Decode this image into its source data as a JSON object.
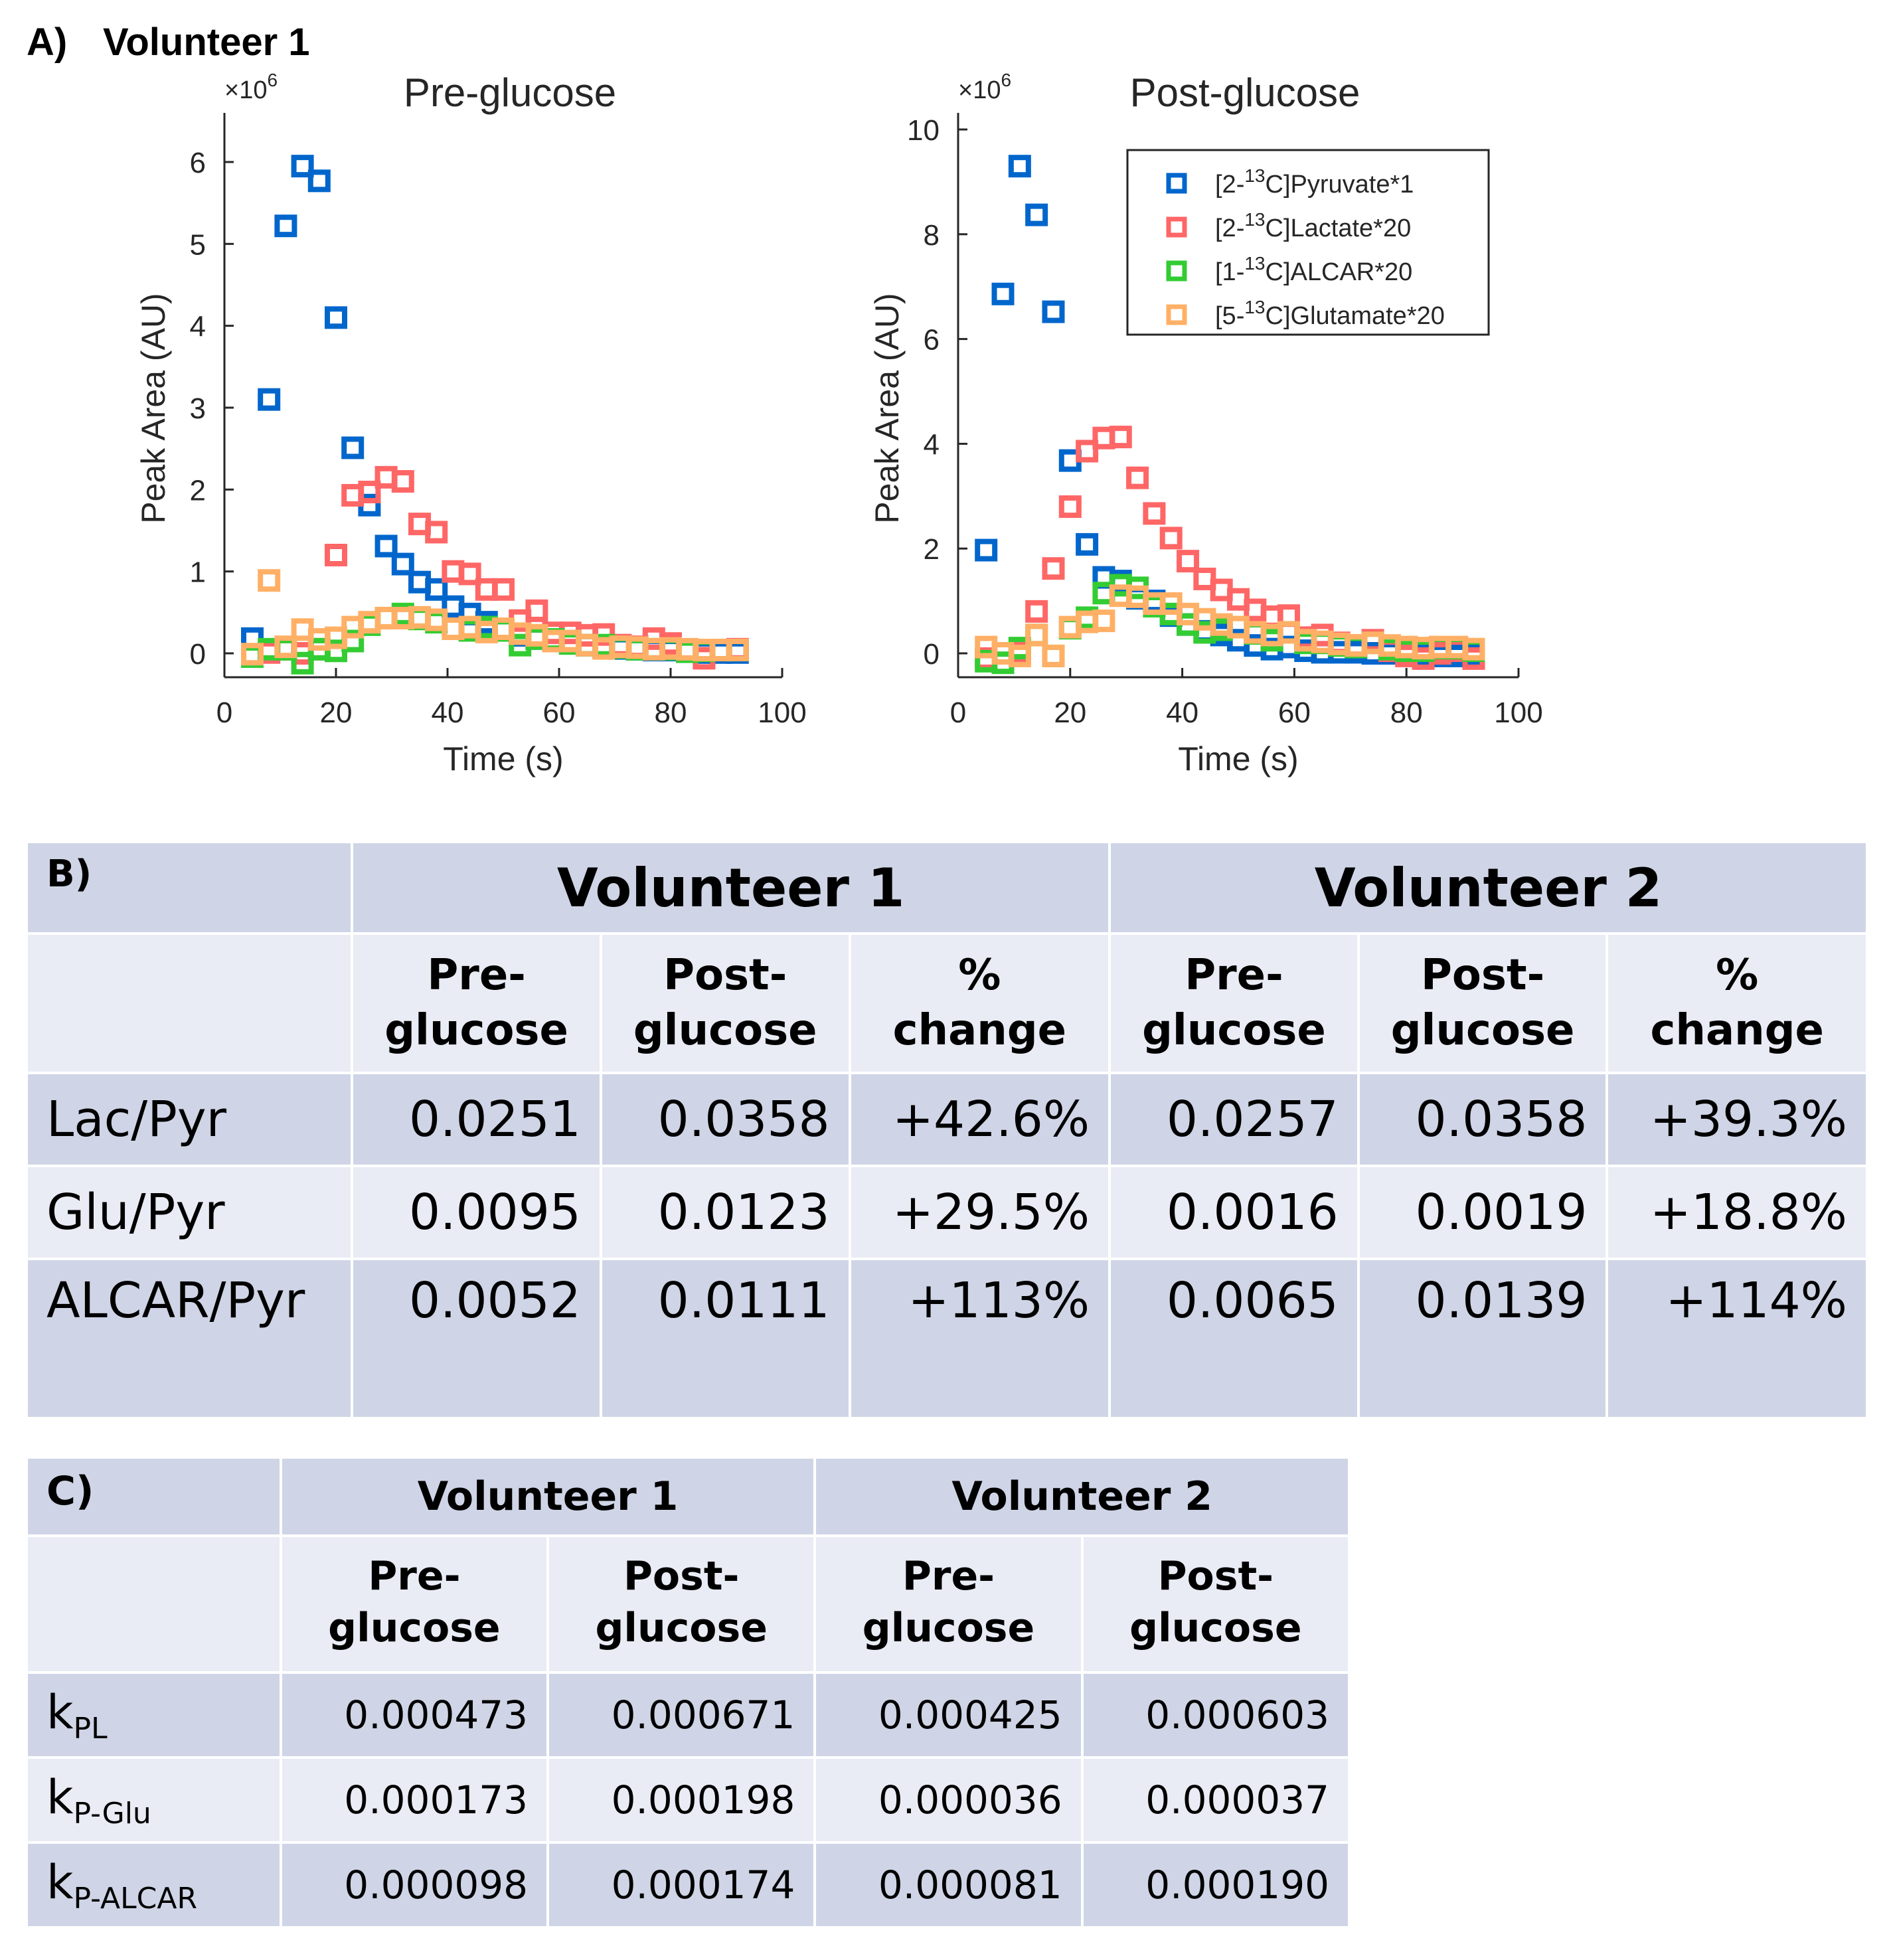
{
  "figure": {
    "panel_a": {
      "label": "A)",
      "title": "Volunteer 1"
    },
    "panel_b": {
      "label": "B)"
    },
    "panel_c": {
      "label": "C)"
    }
  },
  "colors": {
    "pyruvate": "#0066cc",
    "lactate": "#ff6666",
    "alcar": "#33cc33",
    "glutamate": "#ffb066",
    "axis": "#262626",
    "table_dark": "#cfd5e6",
    "table_light": "#e9ecf4"
  },
  "chart_data": [
    {
      "type": "scatter",
      "title": "Pre-glucose",
      "xlabel": "Time (s)",
      "ylabel": "Peak Area (AU)",
      "y_multiplier": "×10^6",
      "y_multiplier_base": "×10",
      "y_multiplier_exp": "6",
      "xlim": [
        0,
        100
      ],
      "ylim": [
        -0.3,
        6.5
      ],
      "xticks": [
        0,
        20,
        40,
        60,
        80,
        100
      ],
      "yticks": [
        0,
        1,
        2,
        3,
        4,
        5,
        6
      ],
      "grid": false,
      "legend": "none",
      "x": [
        5,
        8,
        11,
        14,
        17,
        20,
        23,
        26,
        29,
        32,
        35,
        38,
        41,
        44,
        47,
        50,
        53,
        56,
        59,
        62,
        65,
        68,
        71,
        74,
        77,
        80,
        83,
        86,
        89,
        92
      ],
      "series": [
        {
          "name": "[2-13C]Pyruvate*1",
          "color_key": "pyruvate",
          "values": [
            0.18,
            3.1,
            5.22,
            5.95,
            5.77,
            4.1,
            2.51,
            1.81,
            1.31,
            1.09,
            0.87,
            0.78,
            0.57,
            0.48,
            0.38,
            0.28,
            0.22,
            0.18,
            0.15,
            0.13,
            0.1,
            0.08,
            0.06,
            0.05,
            0.04,
            0.04,
            0.02,
            0.01,
            0.01,
            0.01
          ]
        },
        {
          "name": "[2-13C]Lactate*20",
          "color_key": "lactate",
          "values": [
            -0.02,
            0.01,
            0.05,
            0.0,
            0.05,
            1.2,
            1.93,
            1.97,
            2.15,
            2.1,
            1.58,
            1.48,
            1.0,
            0.97,
            0.78,
            0.78,
            0.4,
            0.52,
            0.25,
            0.25,
            0.22,
            0.23,
            0.1,
            0.08,
            0.18,
            0.12,
            0.03,
            -0.06,
            0.04,
            0.05
          ]
        },
        {
          "name": "[1-13C]ALCAR*20",
          "color_key": "alcar",
          "values": [
            -0.04,
            0.05,
            0.05,
            -0.12,
            0.05,
            0.03,
            0.15,
            0.35,
            0.43,
            0.48,
            0.42,
            0.38,
            0.3,
            0.28,
            0.32,
            0.28,
            0.1,
            0.18,
            0.17,
            0.12,
            0.1,
            0.1,
            0.07,
            0.05,
            0.05,
            0.05,
            0.02,
            0.03,
            0.04,
            0.04
          ]
        },
        {
          "name": "[5-13C]Glutamate*20",
          "color_key": "glutamate",
          "values": [
            -0.01,
            0.89,
            0.08,
            0.29,
            0.17,
            0.19,
            0.32,
            0.38,
            0.43,
            0.43,
            0.44,
            0.41,
            0.3,
            0.32,
            0.26,
            0.3,
            0.24,
            0.22,
            0.15,
            0.15,
            0.1,
            0.06,
            0.08,
            0.07,
            0.05,
            0.06,
            0.05,
            0.04,
            0.04,
            0.04
          ]
        }
      ]
    },
    {
      "type": "scatter",
      "title": "Post-glucose",
      "xlabel": "Time (s)",
      "ylabel": "Peak Area (AU)",
      "y_multiplier": "×10^6",
      "y_multiplier_base": "×10",
      "y_multiplier_exp": "6",
      "xlim": [
        0,
        100
      ],
      "ylim": [
        -0.45,
        10.2
      ],
      "xticks": [
        0,
        20,
        40,
        60,
        80,
        100
      ],
      "yticks": [
        0,
        2,
        4,
        6,
        8,
        10
      ],
      "grid": false,
      "legend": "top-right",
      "x": [
        5,
        8,
        11,
        14,
        17,
        20,
        23,
        26,
        29,
        32,
        35,
        38,
        41,
        44,
        47,
        50,
        53,
        56,
        59,
        62,
        65,
        68,
        71,
        74,
        77,
        80,
        83,
        86,
        89,
        92
      ],
      "series": [
        {
          "name": "[2-13C]Pyruvate*1",
          "color_key": "pyruvate",
          "values": [
            1.97,
            6.86,
            9.3,
            8.37,
            6.52,
            3.68,
            2.08,
            1.45,
            1.38,
            1.05,
            1.0,
            0.72,
            0.55,
            0.42,
            0.35,
            0.25,
            0.15,
            0.08,
            0.12,
            0.05,
            0.02,
            0.02,
            0.02,
            0.0,
            0.0,
            0.0,
            -0.05,
            -0.05,
            -0.05,
            -0.05
          ]
        },
        {
          "name": "[2-13C]Lactate*20",
          "color_key": "lactate",
          "values": [
            -0.1,
            0.0,
            0.0,
            0.8,
            1.62,
            2.8,
            3.86,
            4.11,
            4.13,
            3.35,
            2.67,
            2.2,
            1.76,
            1.42,
            1.21,
            1.03,
            0.83,
            0.7,
            0.72,
            0.3,
            0.35,
            0.2,
            0.15,
            0.25,
            0.05,
            -0.05,
            -0.1,
            0.0,
            0.05,
            -0.1
          ]
        },
        {
          "name": "[1-13C]ALCAR*20",
          "color_key": "alcar",
          "values": [
            -0.15,
            -0.18,
            0.1,
            0.35,
            -0.05,
            0.48,
            0.68,
            1.15,
            1.3,
            1.25,
            0.9,
            0.75,
            0.55,
            0.4,
            0.45,
            0.5,
            0.38,
            0.25,
            0.4,
            0.2,
            0.2,
            0.15,
            0.12,
            0.2,
            0.08,
            0.05,
            0.05,
            0.1,
            0.1,
            0.05
          ]
        },
        {
          "name": "[5-13C]Glutamate*20",
          "color_key": "glutamate",
          "values": [
            0.12,
            0.0,
            -0.05,
            0.35,
            -0.05,
            0.5,
            0.6,
            0.62,
            1.1,
            1.08,
            0.95,
            0.95,
            0.75,
            0.65,
            0.55,
            0.5,
            0.4,
            0.35,
            0.4,
            0.25,
            0.22,
            0.18,
            0.15,
            0.2,
            0.15,
            0.12,
            0.1,
            0.12,
            0.12,
            0.08
          ]
        }
      ]
    }
  ],
  "table_b": {
    "corner": "B)",
    "volunteers": [
      "Volunteer 1",
      "Volunteer 2"
    ],
    "subheaders": [
      {
        "line1": "Pre-",
        "line2": "glucose"
      },
      {
        "line1": "Post-",
        "line2": "glucose"
      },
      {
        "line1": "% change",
        "line2": ""
      },
      {
        "line1": "Pre-",
        "line2": "glucose"
      },
      {
        "line1": "Post-",
        "line2": "glucose"
      },
      {
        "line1": "% change",
        "line2": ""
      }
    ],
    "rows": [
      {
        "name": "Lac/Pyr",
        "values": [
          "0.0251",
          "0.0358",
          "+42.6%",
          "0.0257",
          "0.0358",
          "+39.3%"
        ]
      },
      {
        "name": "Glu/Pyr",
        "values": [
          "0.0095",
          "0.0123",
          "+29.5%",
          "0.0016",
          "0.0019",
          "+18.8%"
        ]
      },
      {
        "name": "ALCAR/Pyr",
        "values": [
          "0.0052",
          "0.0111",
          "+113%",
          "0.0065",
          "0.0139",
          "+114%"
        ]
      }
    ]
  },
  "table_c": {
    "corner": "C)",
    "volunteers": [
      "Volunteer 1",
      "Volunteer 2"
    ],
    "subheaders": [
      {
        "line1": "Pre-",
        "line2": "glucose"
      },
      {
        "line1": "Post-",
        "line2": "glucose"
      },
      {
        "line1": "Pre-",
        "line2": "glucose"
      },
      {
        "line1": "Post-",
        "line2": "glucose"
      }
    ],
    "rows": [
      {
        "name": "k",
        "sub": "PL",
        "values": [
          "0.000473",
          "0.000671",
          "0.000425",
          "0.000603"
        ]
      },
      {
        "name": "k",
        "sub": "P-Glu",
        "values": [
          "0.000173",
          "0.000198",
          "0.000036",
          "0.000037"
        ]
      },
      {
        "name": "k",
        "sub": "P-ALCAR",
        "values": [
          "0.000098",
          "0.000174",
          "0.000081",
          "0.000190"
        ]
      }
    ]
  }
}
